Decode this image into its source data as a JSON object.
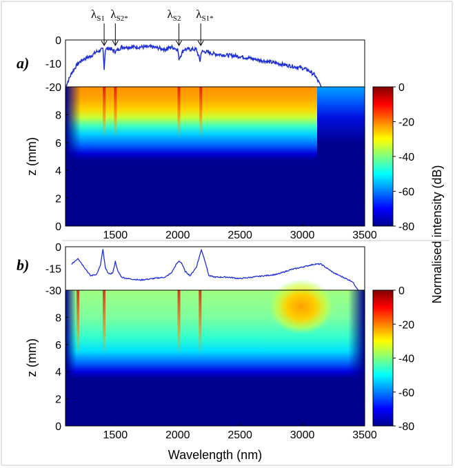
{
  "colors": {
    "spectrum": "#1f2fd6",
    "colormap": "jet"
  },
  "colorbar": {
    "label": "Normalised intensity (dB)",
    "ticks": [
      "0",
      "-20",
      "-40",
      "-60",
      "-80"
    ],
    "range": [
      -80,
      0
    ]
  },
  "xlabel": "Wavelength (nm)",
  "chart_data": [
    {
      "panel": "a)",
      "type": "line",
      "role": "output spectrum",
      "x": [
        1100,
        1150,
        1200,
        1250,
        1300,
        1350,
        1400,
        1410,
        1420,
        1450,
        1500,
        1550,
        1600,
        1700,
        1800,
        1900,
        1950,
        2000,
        2010,
        2050,
        2100,
        2150,
        2180,
        2190,
        2220,
        2300,
        2400,
        2500,
        2600,
        2700,
        2800,
        2900,
        3000,
        3050,
        3100,
        3150
      ],
      "y": [
        -20,
        -14,
        -10,
        -8,
        -7,
        -5,
        -4,
        -12,
        -4,
        -3.5,
        -5,
        -3,
        -3,
        -3,
        -3,
        -4,
        -3,
        -4,
        -8,
        -4,
        -4,
        -4,
        -9,
        -5,
        -5,
        -6,
        -6.5,
        -7,
        -8,
        -9,
        -10,
        -11,
        -12,
        -13,
        -15,
        -20
      ],
      "ylim": [
        -20,
        0
      ],
      "yticks": [
        "0",
        "-10",
        "-20"
      ],
      "annotations": [
        {
          "base": "λ",
          "sub": "S1",
          "x": 1410
        },
        {
          "base": "λ",
          "sub": "S2*",
          "x": 1500
        },
        {
          "base": "λ",
          "sub": "S2",
          "x": 2010
        },
        {
          "base": "λ",
          "sub": "S1*",
          "x": 2185
        }
      ]
    },
    {
      "panel": "a)",
      "type": "heatmap",
      "role": "propagation map",
      "ylabel": "z (mm)",
      "xlim": [
        1100,
        3500
      ],
      "ylim": [
        0,
        10
      ],
      "xticks": [
        "1500",
        "2000",
        "2500",
        "3000",
        "3500"
      ],
      "yticks": [
        "0",
        "2",
        "4",
        "6",
        "8"
      ],
      "onset_z_mm": 4.8,
      "peak_z_range": [
        8.5,
        10
      ],
      "hot_band_nm": [
        1350,
        2300
      ],
      "line_features_nm": [
        1410,
        1500,
        2010,
        2185
      ]
    },
    {
      "panel": "b)",
      "type": "line",
      "role": "output spectrum",
      "x": [
        1150,
        1200,
        1250,
        1300,
        1350,
        1380,
        1400,
        1420,
        1450,
        1480,
        1500,
        1520,
        1550,
        1600,
        1700,
        1800,
        1900,
        1950,
        1990,
        2010,
        2030,
        2060,
        2100,
        2150,
        2170,
        2190,
        2220,
        2250,
        2300,
        2400,
        2500,
        2600,
        2700,
        2800,
        2900,
        3000,
        3100,
        3150,
        3200,
        3250,
        3300,
        3350,
        3400,
        3450
      ],
      "y": [
        -12,
        -8,
        -14,
        -20,
        -19,
        -13,
        -2,
        -15,
        -19,
        -18,
        -10,
        -17,
        -21,
        -22,
        -23,
        -22,
        -21,
        -18,
        -12,
        -10,
        -11,
        -17,
        -20,
        -14,
        -8,
        -2,
        -10,
        -20,
        -21,
        -21,
        -22,
        -21,
        -20,
        -19,
        -16,
        -14,
        -12,
        -12,
        -15,
        -18,
        -20,
        -22,
        -24,
        -30
      ],
      "ylim": [
        -30,
        0
      ],
      "yticks": [
        "0",
        "-15",
        "-30"
      ]
    },
    {
      "panel": "b)",
      "type": "heatmap",
      "role": "propagation map",
      "ylabel": "z (mm)",
      "xlim": [
        1100,
        3500
      ],
      "ylim": [
        0,
        10
      ],
      "xticks": [
        "1500",
        "2000",
        "2500",
        "3000",
        "3500"
      ],
      "yticks": [
        "0",
        "2",
        "4",
        "6",
        "8"
      ],
      "onset_z_mm": 3.6,
      "peak_z_range": [
        7.5,
        10
      ],
      "hot_band_nm": [
        2800,
        3200
      ],
      "line_features_nm": [
        1200,
        1410,
        2010,
        2180
      ]
    }
  ]
}
